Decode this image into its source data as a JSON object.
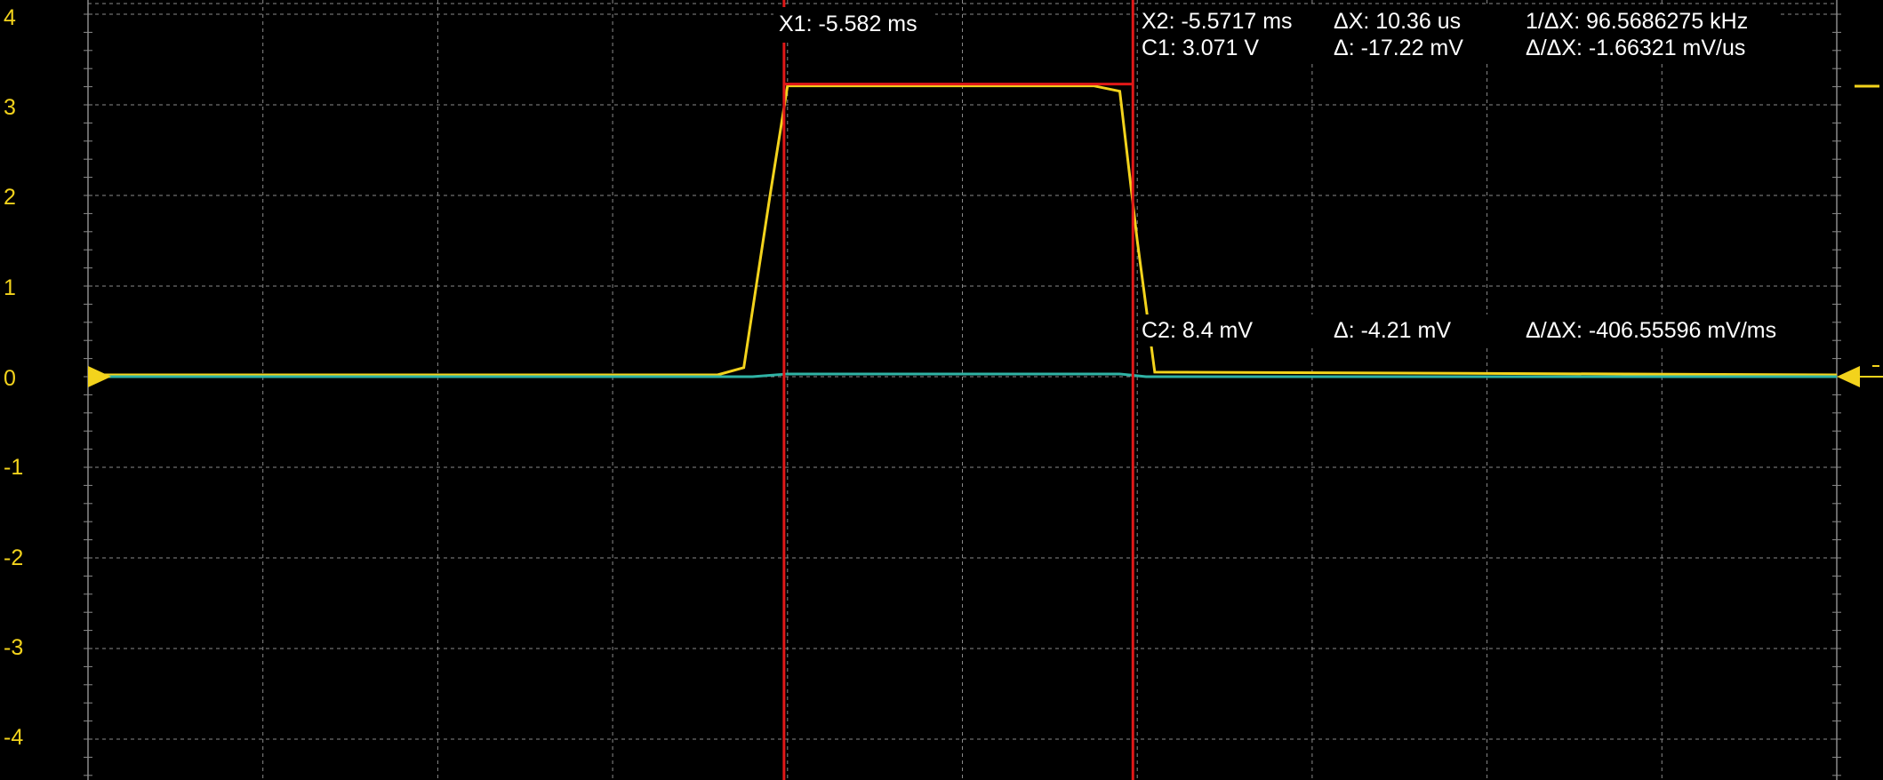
{
  "channel_colors": {
    "ch1": "#f3d31c",
    "ch2": "#2fb3a5",
    "cursor": "#e01818",
    "grid": "#8a8a8a"
  },
  "y_axis": {
    "ticks": [
      "4",
      "3",
      "2",
      "1",
      "0",
      "-1",
      "-2",
      "-3",
      "-4"
    ]
  },
  "cursors": {
    "x1_label": "X1: -5.582 ms",
    "x2_label": "X2: -5.5717 ms",
    "dx_label": "ΔX: 10.36 us",
    "inv_dx_label": "1/ΔX: 96.5686275 kHz",
    "c1_label": "C1: 3.071 V",
    "c1_delta_label": "Δ: -17.22 mV",
    "c1_slope_label": "Δ/ΔX: -1.66321 mV/us",
    "c2_label": "C2: 8.4 mV",
    "c2_delta_label": "Δ: -4.21 mV",
    "c2_slope_label": "Δ/ΔX: -406.55596 mV/ms"
  },
  "chart_data": {
    "type": "line",
    "ylim": [
      -4.4,
      4.2
    ],
    "xlim": [
      0,
      20
    ],
    "grid": true,
    "series": [
      {
        "channel": "ch1",
        "x": [
          0,
          7.2,
          7.5,
          7.8,
          8.0,
          11.5,
          11.8,
          12.0,
          12.2,
          20
        ],
        "values": [
          0.02,
          0.02,
          0.1,
          2.0,
          3.21,
          3.21,
          3.15,
          1.5,
          0.05,
          0.02
        ]
      },
      {
        "channel": "ch2",
        "x": [
          0,
          7.6,
          8.0,
          11.8,
          12.1,
          20
        ],
        "values": [
          0.0,
          0.0,
          0.03,
          0.03,
          0.0,
          0.0
        ]
      }
    ],
    "cursor_x": [
      7.96,
      11.95
    ]
  }
}
